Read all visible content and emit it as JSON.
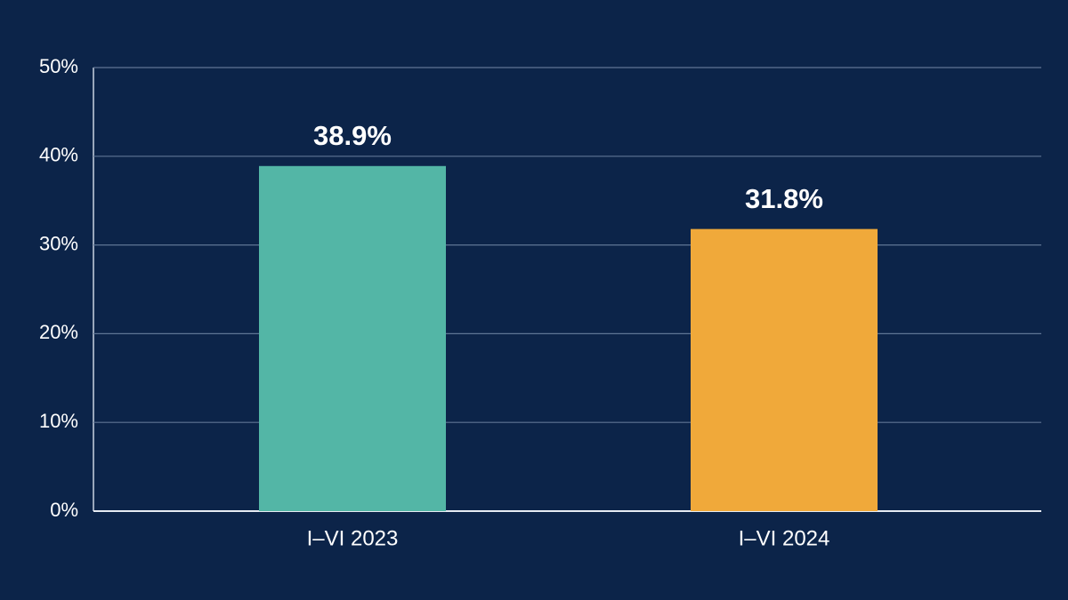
{
  "chart_data": {
    "type": "bar",
    "categories": [
      "I–VI 2023",
      "I–VI 2024"
    ],
    "values": [
      38.9,
      31.8
    ],
    "value_labels": [
      "38.9%",
      "31.8%"
    ],
    "colors": [
      "#53b6a6",
      "#f0a93a"
    ],
    "ylim": [
      0,
      50
    ],
    "yticks": [
      {
        "value": 0,
        "label": "0%"
      },
      {
        "value": 10,
        "label": "10%"
      },
      {
        "value": 20,
        "label": "20%"
      },
      {
        "value": 30,
        "label": "30%"
      },
      {
        "value": 40,
        "label": "40%"
      },
      {
        "value": 50,
        "label": "50%"
      }
    ],
    "grid": true
  }
}
